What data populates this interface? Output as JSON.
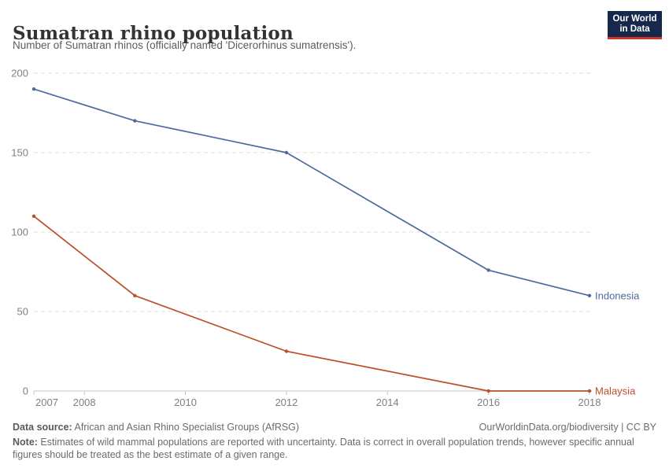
{
  "header": {
    "title": "Sumatran rhino population",
    "subtitle": "Number of Sumatran rhinos (officially named 'Dicerorhinus sumatrensis')."
  },
  "logo": {
    "line1": "Our World",
    "line2": "in Data",
    "bg_color": "#16294d",
    "accent_color": "#d0351f"
  },
  "chart_data": {
    "type": "line",
    "x": [
      2007,
      2009,
      2012,
      2016,
      2018
    ],
    "series": [
      {
        "name": "Indonesia",
        "values": [
          190,
          170,
          150,
          76,
          60
        ],
        "color": "#4C6A9C"
      },
      {
        "name": "Malaysia",
        "values": [
          110,
          60,
          25,
          0,
          0
        ],
        "color": "#BC4E2A"
      }
    ],
    "title": "Sumatran rhino population",
    "xlabel": "",
    "ylabel": "",
    "xlim": [
      2007,
      2018
    ],
    "ylim": [
      0,
      200
    ],
    "xticks": [
      2007,
      2008,
      2010,
      2012,
      2014,
      2016,
      2018
    ],
    "yticks": [
      0,
      50,
      100,
      150,
      200
    ],
    "grid": "horizontal-dashed",
    "legend_position": "line-end-labels",
    "colors": {
      "grid": "#dcdcdc",
      "axis": "#c4c4c4",
      "tick_text": "#808080"
    }
  },
  "footer": {
    "source_label": "Data source:",
    "source_text": " African and Asian Rhino Specialist Groups (AfRSG)",
    "link_text": "OurWorldinData.org/biodiversity | CC BY",
    "note_label": "Note:",
    "note_text": " Estimates of wild mammal populations are reported with uncertainty. Data is correct in overall population trends, however specific annual figures should be treated as the best estimate of a given range."
  }
}
